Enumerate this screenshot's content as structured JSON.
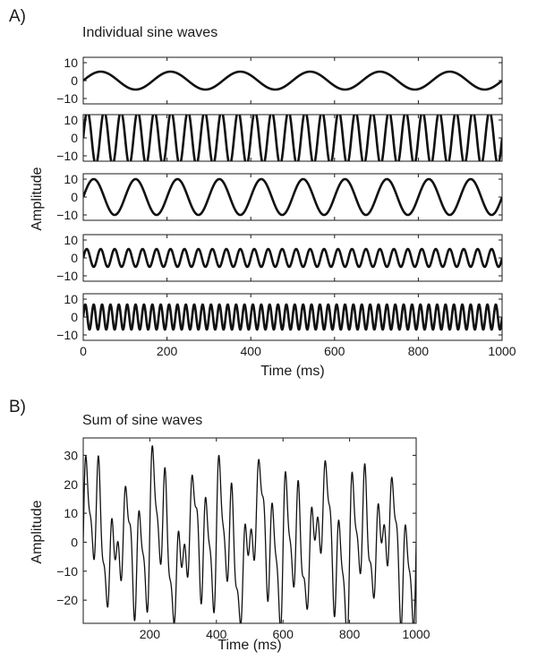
{
  "colors": {
    "line": "#111111",
    "axis": "#1a1a1a",
    "background": "#ffffff"
  },
  "panels": {
    "a": {
      "letter": "A)",
      "title": "Individual sine waves",
      "ylabel": "Amplitude",
      "xlabel": "Time (ms)"
    },
    "b": {
      "letter": "B)",
      "title": "Sum of sine waves",
      "ylabel": "Amplitude",
      "xlabel": "Time (ms)"
    }
  },
  "chart_data": [
    {
      "type": "line",
      "title": "Individual sine waves",
      "xlabel": "Time (ms)",
      "ylabel": "Amplitude",
      "xlim": [
        0,
        1000
      ],
      "xticks": [
        0,
        200,
        400,
        600,
        800,
        1000
      ],
      "grid": false,
      "series": [
        {
          "amplitude": 5,
          "frequency_hz": 6,
          "ylim": [
            -13,
            13
          ],
          "yticks": [
            10,
            0,
            -10
          ]
        },
        {
          "amplitude": 15,
          "frequency_hz": 25,
          "ylim": [
            -13,
            13
          ],
          "yticks": [
            10,
            0,
            -10
          ]
        },
        {
          "amplitude": 10,
          "frequency_hz": 10,
          "ylim": [
            -13,
            13
          ],
          "yticks": [
            10,
            0,
            -10
          ]
        },
        {
          "amplitude": 5,
          "frequency_hz": 30,
          "ylim": [
            -13,
            13
          ],
          "yticks": [
            10,
            0,
            -10
          ]
        },
        {
          "amplitude": 7,
          "frequency_hz": 50,
          "ylim": [
            -13,
            13
          ],
          "yticks": [
            10,
            0,
            -10
          ]
        }
      ]
    },
    {
      "type": "line",
      "title": "Sum of sine waves",
      "xlabel": "Time (ms)",
      "ylabel": "Amplitude",
      "xlim": [
        0,
        1000
      ],
      "ylim": [
        -28,
        36
      ],
      "xticks": [
        200,
        400,
        600,
        800,
        1000
      ],
      "yticks": [
        30,
        20,
        10,
        0,
        -10,
        -20
      ],
      "grid": false,
      "series": [
        {
          "sum_of": [
            {
              "amplitude": 5,
              "frequency_hz": 6
            },
            {
              "amplitude": 15,
              "frequency_hz": 25
            },
            {
              "amplitude": 10,
              "frequency_hz": 10
            },
            {
              "amplitude": 5,
              "frequency_hz": 30
            },
            {
              "amplitude": 7,
              "frequency_hz": 50
            }
          ]
        }
      ]
    }
  ]
}
